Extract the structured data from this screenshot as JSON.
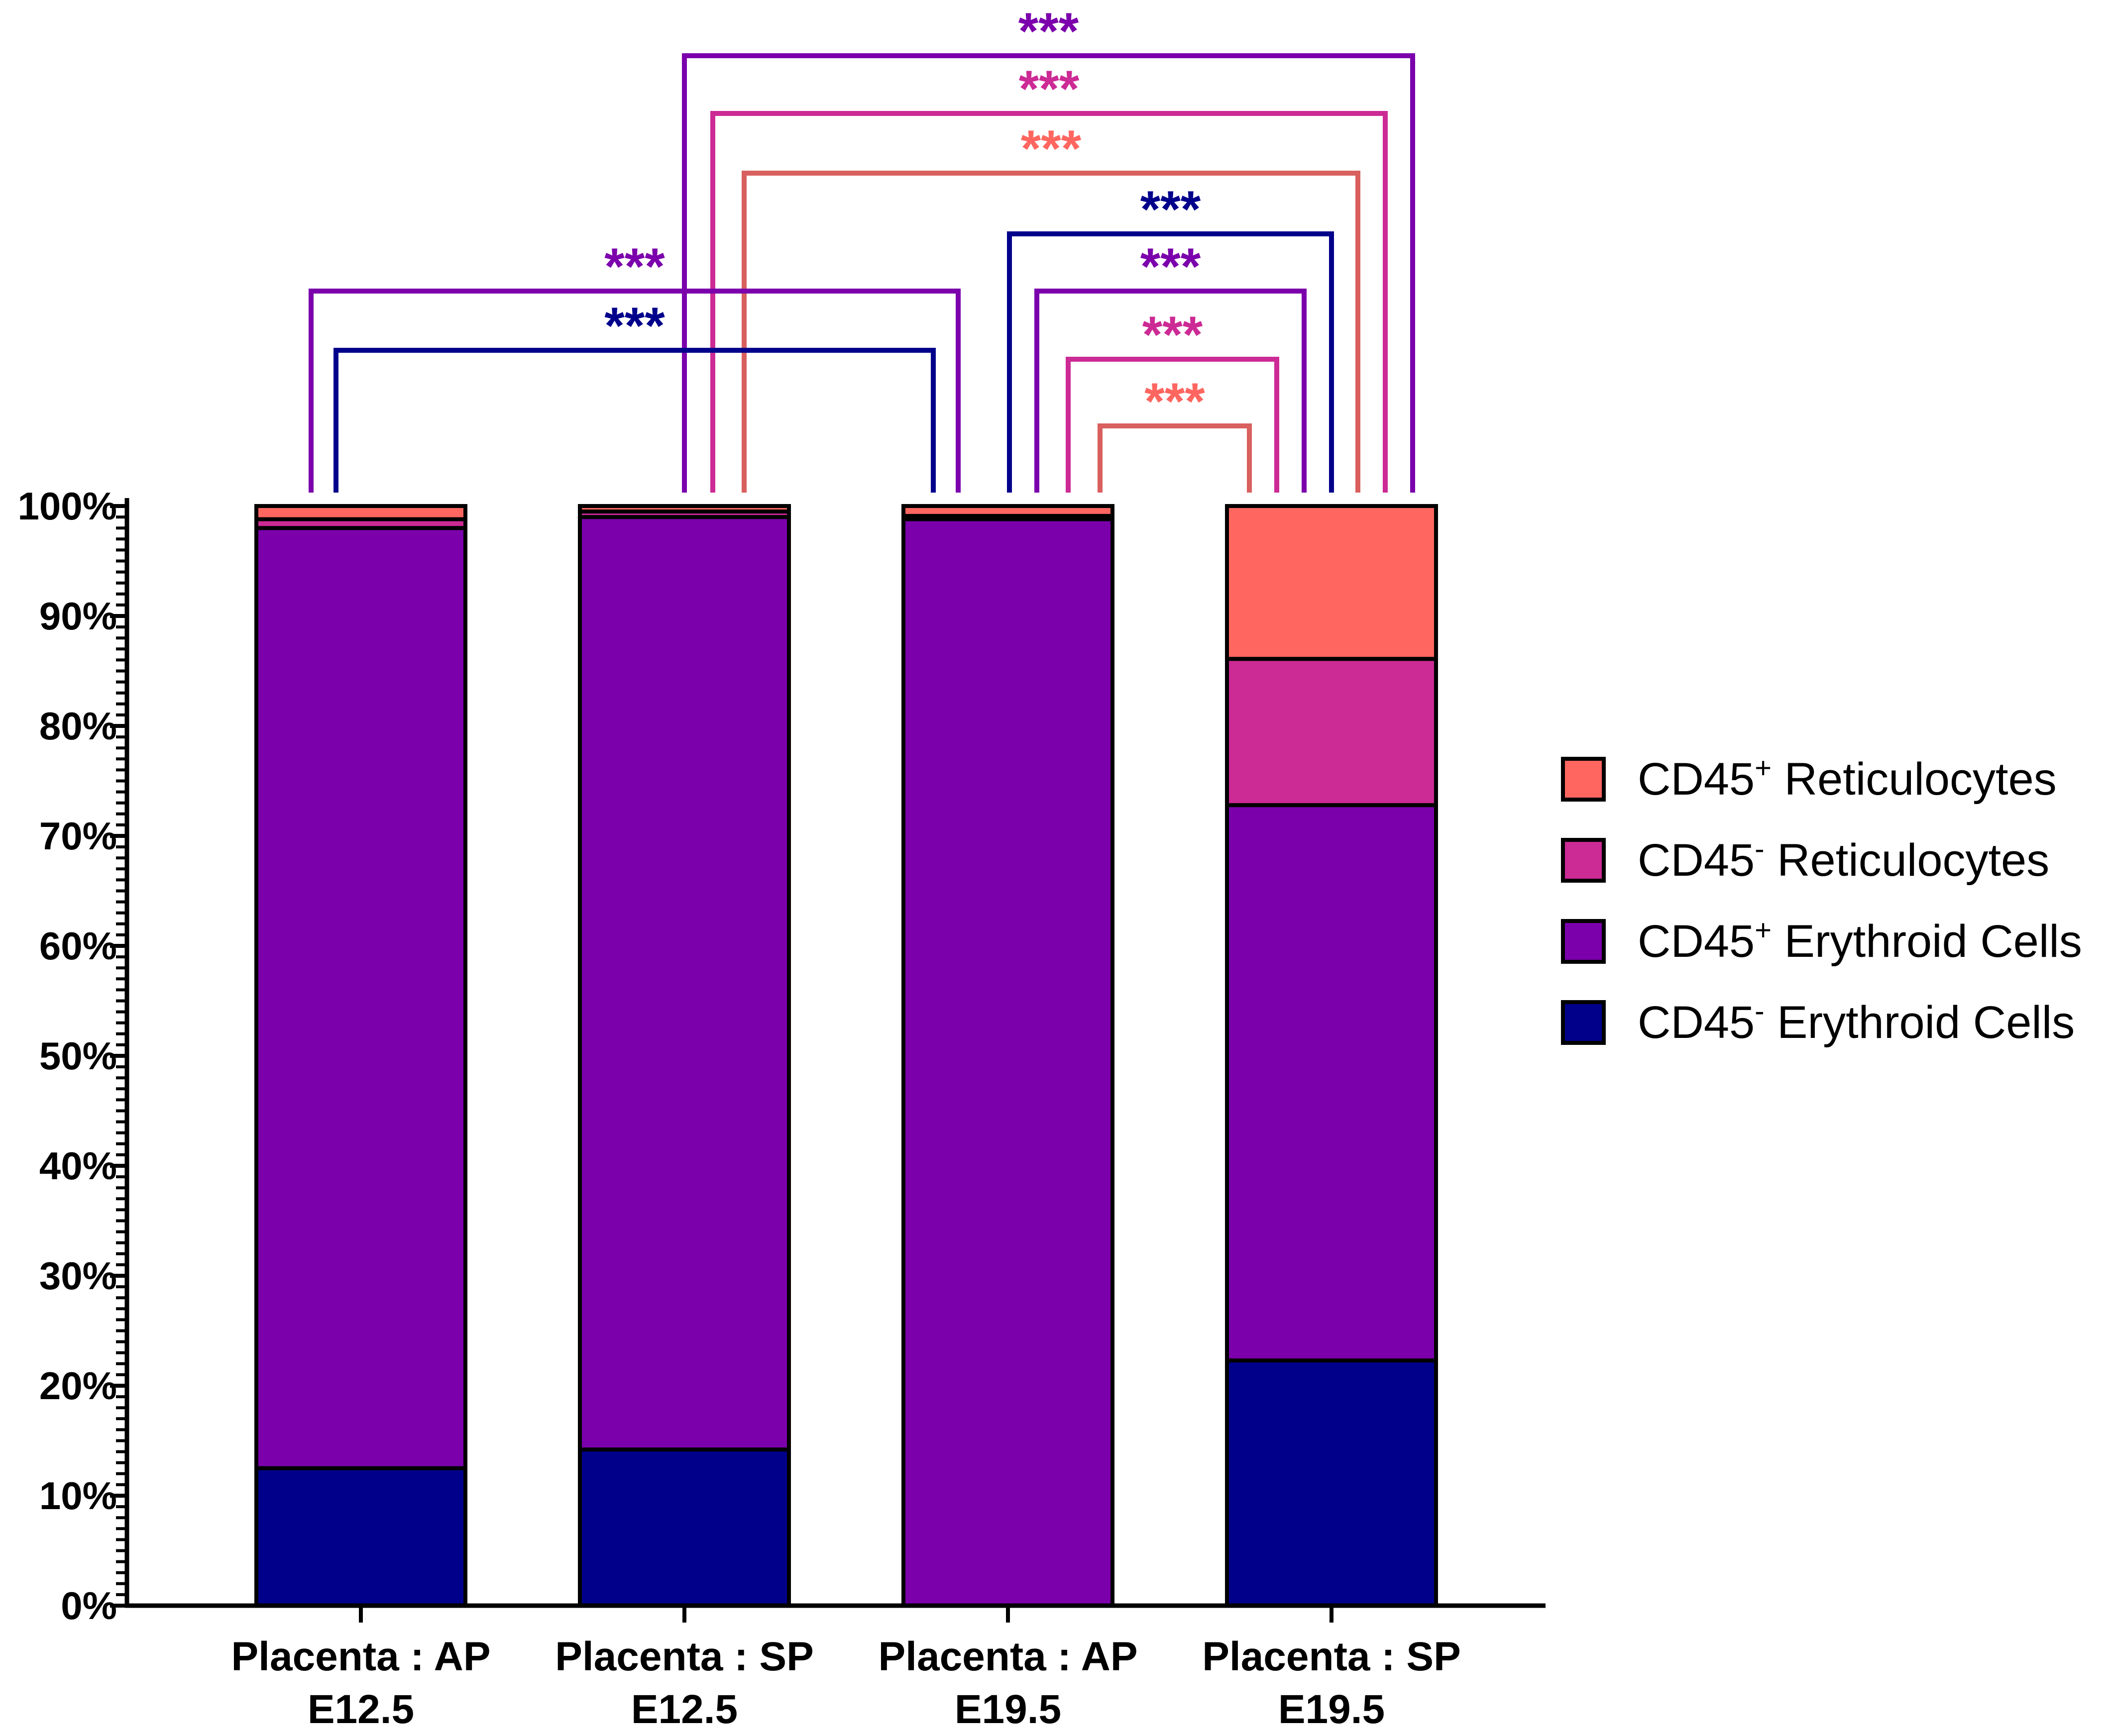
{
  "chart_data": {
    "type": "bar",
    "stacked": true,
    "title": "",
    "xlabel": "",
    "ylabel": "",
    "ylim": [
      0,
      100
    ],
    "y_tick_labels": [
      "0%",
      "10%",
      "20%",
      "30%",
      "40%",
      "50%",
      "60%",
      "70%",
      "80%",
      "90%",
      "100%"
    ],
    "categories": [
      [
        "Placenta : AP",
        "E12.5"
      ],
      [
        "Placenta : SP",
        "E12.5"
      ],
      [
        "Placenta : AP",
        "E19.5"
      ],
      [
        "Placenta : SP",
        "E19.5"
      ]
    ],
    "series": [
      {
        "key": "neg-ery",
        "name": [
          "CD45",
          "-",
          " Erythroid Cells"
        ],
        "color": "#00008B",
        "values": [
          12.5,
          14.2,
          0,
          22.3
        ]
      },
      {
        "key": "pos-ery",
        "name": [
          "CD45",
          "+",
          " Erythroid Cells"
        ],
        "color": "#7B00AC",
        "values": [
          85.5,
          84.8,
          98.8,
          50.5
        ]
      },
      {
        "key": "neg-ret",
        "name": [
          "CD45",
          "-",
          " Reticulocytes"
        ],
        "color": "#CC2A95",
        "values": [
          0.8,
          0.5,
          0.3,
          13.3
        ]
      },
      {
        "key": "pos-ret",
        "name": [
          "CD45",
          "+",
          " Reticulocytes"
        ],
        "color": "#FF6660",
        "values": [
          1.2,
          0.5,
          0.9,
          13.9
        ]
      }
    ],
    "legend_order": [
      "pos-ret",
      "neg-ret",
      "pos-ery",
      "neg-ery"
    ],
    "legend_position": "right",
    "significance": [
      {
        "from": 1,
        "to": 3,
        "series": "pos-ery",
        "label": "***"
      },
      {
        "from": 1,
        "to": 3,
        "series": "neg-ret",
        "label": "***"
      },
      {
        "from": 1,
        "to": 3,
        "series": "pos-ret",
        "label": "***"
      },
      {
        "from": 2,
        "to": 3,
        "series": "neg-ery",
        "label": "***"
      },
      {
        "from": 2,
        "to": 3,
        "series": "pos-ery",
        "label": "***"
      },
      {
        "from": 2,
        "to": 3,
        "series": "neg-ret",
        "label": "***"
      },
      {
        "from": 2,
        "to": 3,
        "series": "pos-ret",
        "label": "***"
      },
      {
        "from": 0,
        "to": 2,
        "series": "pos-ery",
        "label": "***"
      },
      {
        "from": 0,
        "to": 2,
        "series": "neg-ery",
        "label": "***"
      }
    ]
  }
}
